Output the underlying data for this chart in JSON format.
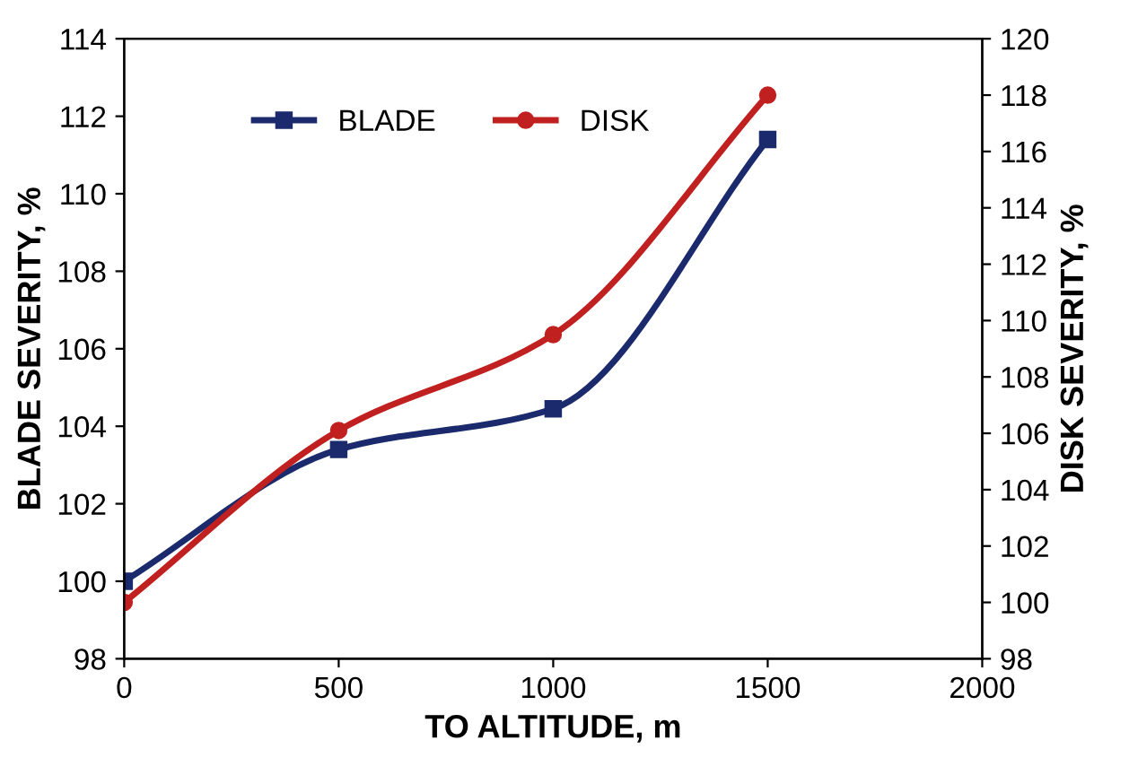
{
  "chart_data": {
    "type": "line",
    "xlabel": "TO ALTITUDE, m",
    "ylabel": "BLADE SEVERITY, %",
    "y2label": "DISK SEVERITY, %",
    "x": [
      0,
      500,
      1000,
      1500
    ],
    "series": [
      {
        "name": "BLADE",
        "color": "#1a2a6c",
        "values": [
          100,
          103.4,
          104.45,
          111.4
        ],
        "marker": "square"
      },
      {
        "name": "DISK",
        "color": "#c0201f",
        "values": [
          100,
          106.1,
          109.5,
          118
        ],
        "axis": "y2",
        "marker": "circle"
      }
    ],
    "xlim": [
      0,
      2000
    ],
    "xticks": [
      0,
      500,
      1000,
      1500,
      2000
    ],
    "ylim": [
      98,
      114
    ],
    "yticks": [
      98,
      100,
      102,
      104,
      106,
      108,
      110,
      112,
      114
    ],
    "y2lim": [
      98,
      120
    ],
    "y2ticks": [
      98,
      100,
      102,
      104,
      106,
      108,
      110,
      112,
      114,
      116,
      118,
      120
    ],
    "legend": "top left",
    "grid": false,
    "line_style": "solid"
  }
}
